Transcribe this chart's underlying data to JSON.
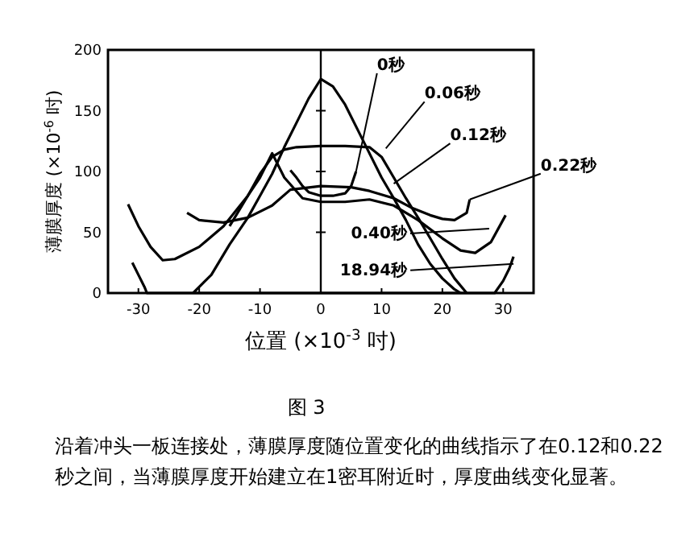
{
  "chart_data": {
    "type": "line",
    "xlabel": "位置 (×10$^{-3}$ 吋)",
    "ylabel": "薄膜厚度 (×10$^{-6}$ 吋)",
    "xlim": [
      -35,
      35
    ],
    "ylim": [
      0,
      200
    ],
    "xticks": [
      -30,
      -20,
      -10,
      0,
      10,
      20,
      30
    ],
    "yticks": [
      0,
      50,
      100,
      150,
      200
    ],
    "grid": false,
    "marker": "none",
    "line_style": "solid",
    "ref_lines": [
      {
        "axis": "x",
        "value": 0
      }
    ],
    "series": [
      {
        "color": "#000000",
        "x": [
          -21,
          -18,
          -15,
          -12,
          -10,
          -8,
          -6,
          -4,
          -2,
          0,
          2,
          4,
          6,
          8,
          10,
          12,
          14,
          16,
          18,
          20,
          22,
          23
        ],
        "values": [
          0,
          15,
          40,
          62,
          80,
          98,
          120,
          140,
          160,
          176,
          170,
          155,
          135,
          115,
          95,
          78,
          60,
          40,
          24,
          12,
          3,
          0
        ]
      },
      {
        "color": "#000000",
        "x": [
          -15,
          -12,
          -10,
          -8,
          -6,
          -4,
          0,
          4,
          8,
          10,
          12,
          14,
          16,
          18,
          20,
          22,
          24
        ],
        "values": [
          55,
          80,
          98,
          112,
          118,
          120,
          121,
          121,
          120,
          112,
          95,
          78,
          62,
          45,
          28,
          12,
          0
        ]
      },
      {
        "color": "#000000",
        "x": [
          -5,
          -4,
          -3,
          -2,
          0,
          2,
          4,
          5,
          5.8
        ],
        "values": [
          101,
          95,
          88,
          83,
          80,
          80,
          82,
          88,
          100
        ]
      },
      {
        "color": "#000000",
        "x": [
          -22,
          -20,
          -16,
          -12,
          -8,
          -5,
          0,
          5,
          8,
          12,
          15,
          18,
          20,
          22,
          24,
          24.5
        ],
        "values": [
          66,
          60,
          58,
          62,
          72,
          85,
          88,
          87,
          84,
          78,
          70,
          64,
          61,
          60,
          66,
          77
        ]
      },
      {
        "color": "#000000",
        "x": [
          -31.7,
          -30,
          -28,
          -26,
          -24,
          -20,
          -16,
          -12,
          -10,
          -8,
          -6,
          -3,
          0,
          4,
          8,
          12,
          16,
          20,
          23,
          25.4,
          28,
          30.4
        ],
        "values": [
          73,
          55,
          38,
          27,
          28,
          38,
          55,
          80,
          95,
          115,
          95,
          78,
          75,
          75,
          77,
          72,
          60,
          45,
          35,
          33,
          42,
          64
        ]
      },
      {
        "color": "#000000",
        "x": [
          -31,
          -30,
          -29,
          -28.6,
          28.6,
          30,
          31,
          31.7
        ],
        "values": [
          25,
          15,
          5,
          0,
          0,
          10,
          20,
          30
        ]
      }
    ],
    "annotations": [
      {
        "text": "0秒",
        "x": 5.8,
        "y": 100
      },
      {
        "text": "0.06秒",
        "x": 10.7,
        "y": 119
      },
      {
        "text": "0.12秒",
        "x": 12,
        "y": 90
      },
      {
        "text": "0.22秒",
        "x": 24.5,
        "y": 77
      },
      {
        "text": "0.40秒",
        "x": 27.7,
        "y": 53
      },
      {
        "text": "18.94秒",
        "x": 31.7,
        "y": 24
      },
      "图 3",
      "沿着冲头一板连接处，薄膜厚度随位置变化的曲线指示了在0.12和0.22秒之间，当薄膜厚度开始建立在1密耳附近时，厚度曲线变化显著。"
    ]
  }
}
